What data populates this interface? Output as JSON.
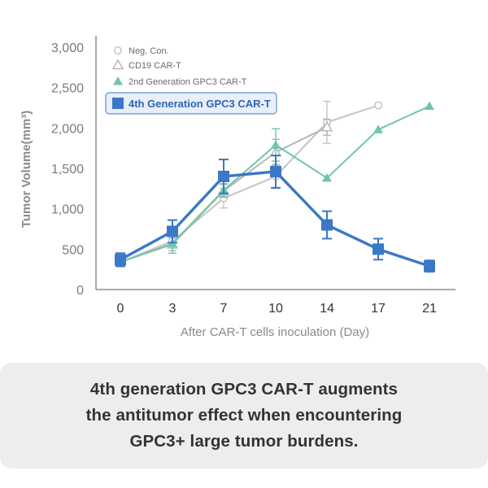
{
  "chart_data": {
    "type": "line",
    "title": "",
    "xlabel": "After CAR-T cells inoculation (Day)",
    "ylabel": "Tumor Volume(mm³)",
    "x": [
      0,
      3,
      7,
      10,
      14,
      17,
      21
    ],
    "x_tick_labels": [
      "0",
      "3",
      "7",
      "10",
      "14",
      "17",
      "21"
    ],
    "ylim": [
      0,
      3000
    ],
    "y_ticks": [
      0,
      500,
      1000,
      1500,
      2000,
      2500,
      3000
    ],
    "y_tick_labels": [
      "0",
      "500",
      "1,000",
      "1,500",
      "2,000",
      "2,500",
      "3,000"
    ],
    "grid": false,
    "legend_position": "top-left",
    "series": [
      {
        "name": "Neg. Con.",
        "marker": "circle-open",
        "color": "#c4c4c4",
        "values": [
          340,
          600,
          1130,
          1400,
          2070,
          2280,
          null
        ],
        "errors": [
          60,
          80,
          120,
          150,
          260,
          0,
          null
        ]
      },
      {
        "name": "CD19 CAR-T",
        "marker": "triangle-open",
        "color": "#b5b5b5",
        "values": [
          340,
          560,
          1220,
          1700,
          2010,
          null,
          null
        ],
        "errors": [
          40,
          80,
          80,
          160,
          100,
          null,
          null
        ]
      },
      {
        "name": "2nd Generation GPC3 CAR-T",
        "marker": "triangle-filled",
        "color": "#6cc7a8",
        "values": [
          340,
          570,
          1230,
          1790,
          1380,
          1980,
          2270
        ],
        "errors": [
          40,
          120,
          80,
          200,
          0,
          0,
          0
        ]
      },
      {
        "name": "4th Generation GPC3 CAR-T",
        "marker": "square-filled",
        "color": "#3a78c8",
        "highlight": true,
        "values": [
          370,
          720,
          1400,
          1460,
          800,
          500,
          290
        ],
        "errors": [
          80,
          140,
          210,
          200,
          170,
          130,
          70
        ]
      }
    ]
  },
  "caption": {
    "line1": "4th generation GPC3 CAR-T augments",
    "line2": "the antitumor effect when encountering",
    "line3": "GPC3+ large tumor burdens."
  }
}
